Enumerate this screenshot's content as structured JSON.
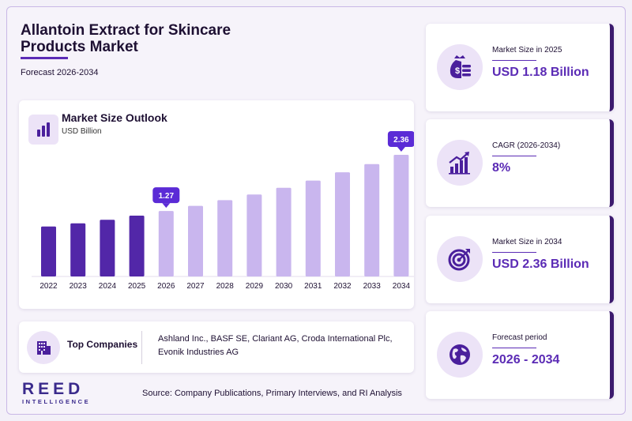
{
  "header": {
    "title": "Allantoin Extract for Skincare Products Market",
    "subtitle": "Forecast 2026-2034"
  },
  "chart_card": {
    "title": "Market Size Outlook",
    "unit": "USD Billion"
  },
  "chart_data": {
    "type": "bar",
    "title": "Market Size Outlook",
    "ylabel": "USD Billion",
    "categories": [
      "2022",
      "2023",
      "2024",
      "2025",
      "2026",
      "2027",
      "2028",
      "2029",
      "2030",
      "2031",
      "2032",
      "2033",
      "2034"
    ],
    "values": [
      0.97,
      1.03,
      1.1,
      1.18,
      1.27,
      1.37,
      1.48,
      1.59,
      1.72,
      1.86,
      2.02,
      2.18,
      2.36
    ],
    "ylim": [
      0,
      2.36
    ],
    "callouts": [
      {
        "category": "2026",
        "label": "1.27"
      },
      {
        "category": "2034",
        "label": "2.36"
      }
    ],
    "colors": {
      "historical": "#5227a8",
      "forecast": "#c9b6ee",
      "callout": "#5b2bd6"
    },
    "grid": false
  },
  "companies": {
    "label": "Top Companies",
    "text": "Ashland Inc., BASF SE, Clariant AG, Croda International Plc, Evonik Industries AG"
  },
  "stats": [
    {
      "label": "Market Size in 2025",
      "value": "USD 1.18 Billion",
      "icon": "money-bag-icon"
    },
    {
      "label": "CAGR (2026-2034)",
      "value": "8%",
      "icon": "growth-chart-icon"
    },
    {
      "label": "Market Size in 2034",
      "value": "USD 2.36 Billion",
      "icon": "target-icon"
    },
    {
      "label": "Forecast period",
      "value": "2026 - 2034",
      "icon": "globe-icon"
    }
  ],
  "footer": {
    "logo_main": "REED",
    "logo_sub": "INTELLIGENCE",
    "source": "Source: Company Publications, Primary Interviews, and RI Analysis"
  },
  "colors": {
    "accent": "#5b2bb5",
    "dark": "#1e1033",
    "card_border": "#3c1a6e"
  }
}
